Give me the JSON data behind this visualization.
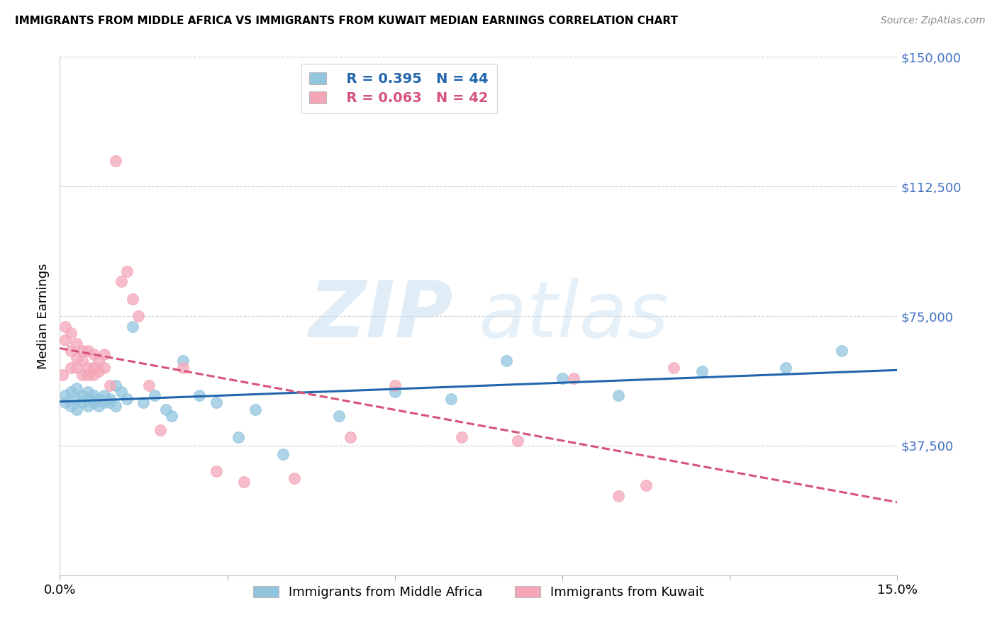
{
  "title": "IMMIGRANTS FROM MIDDLE AFRICA VS IMMIGRANTS FROM KUWAIT MEDIAN EARNINGS CORRELATION CHART",
  "source": "Source: ZipAtlas.com",
  "ylabel": "Median Earnings",
  "legend_label1": "Immigrants from Middle Africa",
  "legend_label2": "Immigrants from Kuwait",
  "R1": 0.395,
  "N1": 44,
  "R2": 0.063,
  "N2": 42,
  "xlim": [
    0.0,
    0.15
  ],
  "ylim": [
    0,
    150000
  ],
  "yticks": [
    0,
    37500,
    75000,
    112500,
    150000
  ],
  "xticks": [
    0.0,
    0.03,
    0.06,
    0.09,
    0.12,
    0.15
  ],
  "xtick_labels": [
    "0.0%",
    "",
    "",
    "",
    "",
    "15.0%"
  ],
  "color_blue": "#92c5de",
  "color_pink": "#f4a6b8",
  "color_blue_line": "#2166ac",
  "color_pink_line": "#d6537a",
  "watermark_zip": "ZIP",
  "watermark_atlas": "atlas",
  "blue_scatter_x": [
    0.001,
    0.001,
    0.002,
    0.002,
    0.003,
    0.003,
    0.003,
    0.004,
    0.004,
    0.005,
    0.005,
    0.005,
    0.006,
    0.006,
    0.007,
    0.007,
    0.008,
    0.008,
    0.009,
    0.009,
    0.01,
    0.01,
    0.011,
    0.012,
    0.013,
    0.015,
    0.017,
    0.019,
    0.02,
    0.022,
    0.025,
    0.028,
    0.032,
    0.035,
    0.04,
    0.05,
    0.06,
    0.07,
    0.08,
    0.09,
    0.1,
    0.115,
    0.13,
    0.14
  ],
  "blue_scatter_y": [
    50000,
    52000,
    49000,
    53000,
    51000,
    48000,
    54000,
    50000,
    52000,
    51000,
    49000,
    53000,
    50000,
    52000,
    49000,
    51000,
    50000,
    52000,
    51000,
    50000,
    55000,
    49000,
    53000,
    51000,
    72000,
    50000,
    52000,
    48000,
    46000,
    62000,
    52000,
    50000,
    40000,
    48000,
    35000,
    46000,
    53000,
    51000,
    62000,
    57000,
    52000,
    59000,
    60000,
    65000
  ],
  "pink_scatter_x": [
    0.0005,
    0.001,
    0.001,
    0.002,
    0.002,
    0.002,
    0.003,
    0.003,
    0.003,
    0.004,
    0.004,
    0.004,
    0.005,
    0.005,
    0.005,
    0.006,
    0.006,
    0.006,
    0.007,
    0.007,
    0.008,
    0.008,
    0.009,
    0.01,
    0.011,
    0.012,
    0.013,
    0.014,
    0.016,
    0.018,
    0.022,
    0.028,
    0.033,
    0.042,
    0.052,
    0.06,
    0.072,
    0.082,
    0.092,
    0.1,
    0.105,
    0.11
  ],
  "pink_scatter_y": [
    58000,
    68000,
    72000,
    60000,
    65000,
    70000,
    60000,
    63000,
    67000,
    58000,
    62000,
    65000,
    60000,
    65000,
    58000,
    60000,
    64000,
    58000,
    62000,
    59000,
    60000,
    64000,
    55000,
    120000,
    85000,
    88000,
    80000,
    75000,
    55000,
    42000,
    60000,
    30000,
    27000,
    28000,
    40000,
    55000,
    40000,
    39000,
    57000,
    23000,
    26000,
    60000
  ]
}
